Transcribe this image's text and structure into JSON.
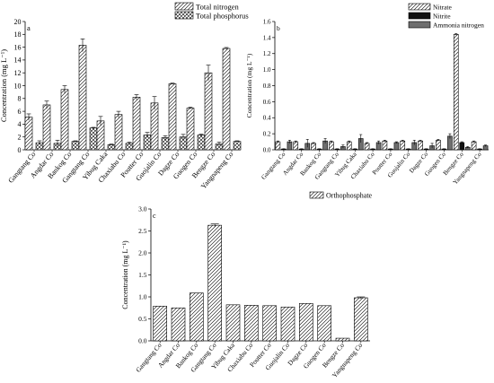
{
  "chart_data": [
    {
      "type": "bar",
      "panel_label": "a",
      "ylabel": "Concentration (mg L⁻¹)",
      "ylim": [
        0,
        20
      ],
      "yticks": [
        0,
        2,
        4,
        6,
        8,
        10,
        12,
        14,
        16,
        18,
        20
      ],
      "categories": [
        "Gangtang Co",
        "Angdar Co",
        "Bankog Co",
        "Gangtang Co",
        "Yibug Caka",
        "Chaxiabu Co",
        "Poutter Co",
        "Guojalin Co",
        "Dagze Co",
        "Guogen Co",
        "Bengze Co",
        "Yangnapeng Co"
      ],
      "series": [
        {
          "name": "Total nitrogen",
          "pattern": "diagonal",
          "values": [
            5.1,
            7.0,
            9.4,
            16.3,
            4.5,
            5.5,
            8.2,
            7.3,
            10.3,
            6.5,
            12.0,
            15.8
          ],
          "errors": [
            0.5,
            0.6,
            0.6,
            1.0,
            0.7,
            0.5,
            0.4,
            1.0,
            0.1,
            0.15,
            1.2,
            0.15
          ]
        },
        {
          "name": "Total phosphorus",
          "pattern": "crosshatch",
          "values": [
            1.1,
            1.0,
            1.3,
            3.4,
            0.8,
            1.0,
            2.3,
            1.9,
            2.0,
            2.3,
            0.9,
            1.3
          ],
          "errors": [
            0.3,
            0.5,
            0.1,
            0.1,
            0.1,
            0.2,
            0.4,
            0.3,
            0.4,
            0.15,
            0.3,
            0.1
          ]
        }
      ],
      "legend_position": "top-right"
    },
    {
      "type": "bar",
      "panel_label": "b",
      "ylabel": "Concentration (mg L⁻¹)",
      "ylim": [
        0,
        1.6
      ],
      "yticks": [
        0.0,
        0.2,
        0.4,
        0.6,
        0.8,
        1.0,
        1.2,
        1.4,
        1.6
      ],
      "categories": [
        "Gangtang Co",
        "Angdar Co",
        "Bankog Co",
        "Gangtang Co",
        "Yibug Caka",
        "Chaxiabu Co",
        "Poutter Co",
        "Guojalin Co",
        "Dagze Co",
        "Guogen Co",
        "Bengze Co",
        "Yangnapeng Co"
      ],
      "series": [
        {
          "name": "Nitrate",
          "pattern": "diagonal",
          "values": [
            0.1,
            0.1,
            0.08,
            0.1,
            0.1,
            0.08,
            0.11,
            0.11,
            0.11,
            0.12,
            1.44,
            0.1
          ],
          "errors": [
            0.01,
            0.01,
            0.01,
            0.01,
            0.01,
            0.01,
            0.01,
            0.01,
            0.01,
            0.01,
            0.01,
            0.01
          ]
        },
        {
          "name": "Nitrite",
          "pattern": "black",
          "values": [
            0.01,
            0.01,
            0.01,
            0.01,
            0.01,
            0.01,
            0.01,
            0.01,
            0.01,
            0.01,
            0.09,
            0.01
          ],
          "errors": [
            0.003,
            0.003,
            0.003,
            0.003,
            0.003,
            0.003,
            0.003,
            0.003,
            0.003,
            0.003,
            0.01,
            0.003
          ]
        },
        {
          "name": "Ammonia nitrogen",
          "pattern": "gray",
          "values": [
            0.1,
            0.08,
            0.11,
            0.04,
            0.14,
            0.09,
            0.09,
            0.09,
            0.05,
            0.17,
            0.03,
            0.05
          ],
          "errors": [
            0.02,
            0.05,
            0.03,
            0.02,
            0.05,
            0.02,
            0.01,
            0.03,
            0.03,
            0.03,
            0.01,
            0.01
          ]
        }
      ],
      "legend_position": "top-right"
    },
    {
      "type": "bar",
      "panel_label": "c",
      "ylabel": "Concentration (mg L⁻¹)",
      "ylim": [
        0,
        3.0
      ],
      "yticks": [
        0.0,
        0.5,
        1.0,
        1.5,
        2.0,
        2.5,
        3.0
      ],
      "categories": [
        "Gangtang Co",
        "Angdar Co",
        "Bankog Co",
        "Gangtang Co",
        "Yibug Caka",
        "Chaxiabu Co",
        "Poutter Co",
        "Guojalin Co",
        "Dagze Co",
        "Guogen Co",
        "Bengze Co",
        "Yangnapeng Co"
      ],
      "series": [
        {
          "name": "Orthophosphate",
          "pattern": "diagonal",
          "values": [
            0.79,
            0.75,
            1.09,
            2.63,
            0.82,
            0.81,
            0.8,
            0.77,
            0.85,
            0.8,
            0.06,
            0.98
          ],
          "errors": [
            0,
            0,
            0,
            0.03,
            0,
            0,
            0,
            0,
            0,
            0,
            0,
            0.02
          ]
        }
      ],
      "legend_position": "top-center"
    }
  ]
}
